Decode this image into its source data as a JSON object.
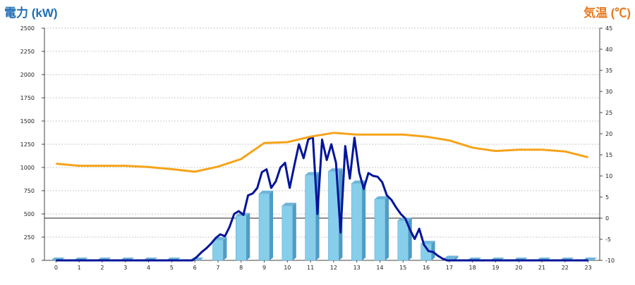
{
  "chart_data": {
    "type": "bar",
    "ylabel_left": "電力 (kW)",
    "ylabel_right": "気温 (℃)",
    "categories": [
      "0",
      "1",
      "2",
      "3",
      "4",
      "5",
      "6",
      "7",
      "8",
      "9",
      "10",
      "11",
      "12",
      "13",
      "14",
      "15",
      "16",
      "17",
      "18",
      "19",
      "20",
      "21",
      "22",
      "23"
    ],
    "left_ticks": [
      "0",
      "250",
      "500",
      "750",
      "1000",
      "1250",
      "1500",
      "1750",
      "2000",
      "2250",
      "2500"
    ],
    "right_ticks": [
      "-10",
      "-5",
      "0",
      "5",
      "10",
      "15",
      "20",
      "25",
      "30",
      "35",
      "40",
      "45"
    ],
    "ylim_left": [
      0,
      2500
    ],
    "ylim_right": [
      -10,
      45
    ],
    "grid": true,
    "series": [
      {
        "kind": "bar",
        "axis": "left",
        "color": "#87ceeb",
        "values": [
          0,
          0,
          0,
          0,
          0,
          0,
          0,
          220,
          480,
          720,
          590,
          920,
          960,
          830,
          660,
          430,
          180,
          20,
          0,
          0,
          0,
          0,
          0,
          0
        ]
      },
      {
        "kind": "line",
        "axis": "left",
        "color": "#00149a",
        "x": [
          0,
          1,
          2,
          3,
          4,
          5,
          5.9,
          6.1,
          6.3,
          6.5,
          6.7,
          6.9,
          7.1,
          7.3,
          7.5,
          7.7,
          7.9,
          8.1,
          8.3,
          8.5,
          8.7,
          8.9,
          9.1,
          9.3,
          9.5,
          9.7,
          9.9,
          10.1,
          10.3,
          10.5,
          10.7,
          10.9,
          11.1,
          11.3,
          11.5,
          11.7,
          11.9,
          12.1,
          12.3,
          12.5,
          12.7,
          12.9,
          13.1,
          13.3,
          13.5,
          13.7,
          13.9,
          14.1,
          14.3,
          14.5,
          14.7,
          14.9,
          15.1,
          15.3,
          15.5,
          15.7,
          15.9,
          16.1,
          16.3,
          16.5,
          16.7,
          16.9,
          17.2,
          18,
          19,
          20,
          21,
          22,
          23
        ],
        "values": [
          0,
          0,
          0,
          0,
          0,
          0,
          0,
          40,
          90,
          130,
          180,
          240,
          280,
          260,
          360,
          500,
          530,
          490,
          700,
          720,
          780,
          950,
          980,
          780,
          850,
          1000,
          1050,
          780,
          1020,
          1250,
          1100,
          1300,
          1330,
          500,
          1300,
          1080,
          1250,
          1050,
          300,
          1230,
          880,
          1320,
          950,
          770,
          940,
          910,
          900,
          840,
          700,
          650,
          570,
          500,
          450,
          330,
          230,
          340,
          170,
          100,
          90,
          50,
          20,
          0,
          0,
          0,
          0,
          0,
          0,
          0,
          0
        ]
      },
      {
        "kind": "line",
        "axis": "right",
        "color": "#f5a31a",
        "x": [
          0,
          1,
          2,
          3,
          4,
          5,
          6,
          7,
          8,
          9,
          10,
          11,
          12,
          13,
          14,
          15,
          16,
          17,
          18,
          19,
          20,
          21,
          22,
          23
        ],
        "values": [
          12.9,
          12.4,
          12.4,
          12.4,
          12.1,
          11.6,
          11.0,
          12.2,
          14.0,
          17.8,
          18.0,
          19.3,
          20.2,
          19.8,
          19.8,
          19.8,
          19.3,
          18.4,
          16.7,
          15.9,
          16.2,
          16.2,
          15.8,
          14.4
        ]
      }
    ]
  }
}
